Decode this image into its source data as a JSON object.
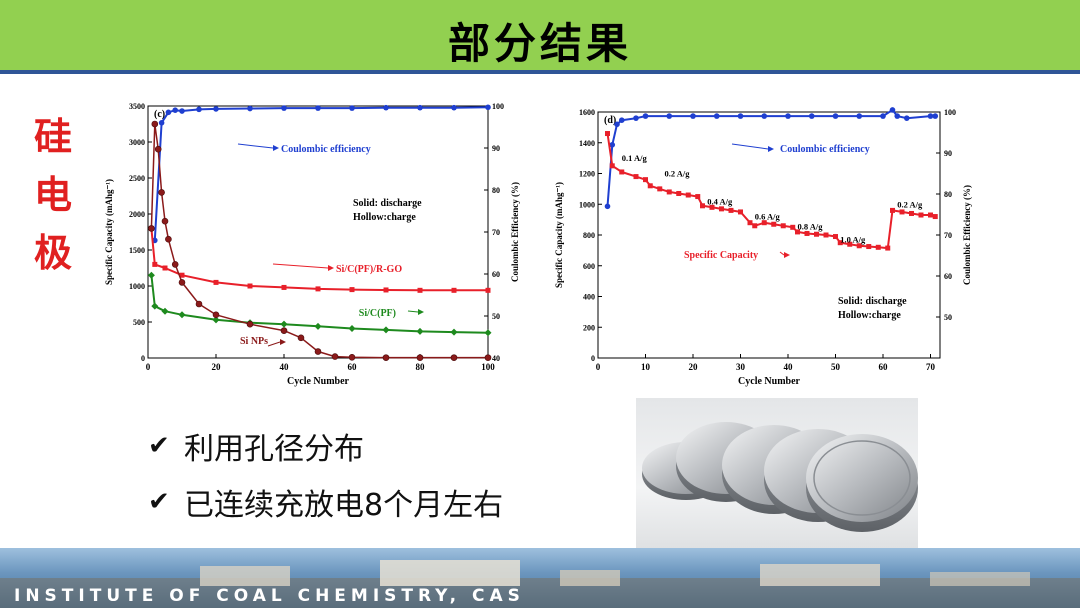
{
  "title": "部分结果",
  "side_label": [
    "硅",
    "电",
    "极"
  ],
  "bullets": [
    "利用孔径分布",
    "已连续充放电8个月左右"
  ],
  "footer_text": "INSTITUTE OF COAL CHEMISTRY, CAS",
  "colors": {
    "title_bg": "#92d050",
    "title_border": "#2f5597",
    "side_label": "#e02020",
    "red": "#e8202a",
    "green": "#1e8a1e",
    "blue": "#1f3fd0",
    "brown": "#8b1a1a"
  },
  "chart_data": [
    {
      "panel": "(c)",
      "type": "scatter",
      "xlabel": "Cycle Number",
      "ylabel": "Specific Capacity (mAhg⁻¹)",
      "y2label": "Coulombic Efficiency (%)",
      "xlim": [
        0,
        100
      ],
      "ylim": [
        0,
        3500
      ],
      "y2lim": [
        40,
        100
      ],
      "xticks": [
        "0",
        "20",
        "40",
        "60",
        "80",
        "100"
      ],
      "yticks": [
        "0",
        "500",
        "1000",
        "1500",
        "2000",
        "2500",
        "3000",
        "3500"
      ],
      "y2ticks": [
        "40",
        "50",
        "60",
        "70",
        "80",
        "90",
        "100"
      ],
      "legend_note": [
        "Solid:  discharge",
        "Hollow:charge"
      ],
      "annotations": [
        "Coulombic efficiency",
        "Si/C(PF)/R-GO",
        "Si/C(PF)",
        "Si NPs"
      ],
      "series": [
        {
          "name": "Coulombic efficiency",
          "axis": "y2",
          "x": [
            2,
            4,
            6,
            8,
            10,
            15,
            20,
            30,
            40,
            50,
            60,
            70,
            80,
            90,
            100
          ],
          "y": [
            68,
            96,
            98.5,
            99,
            98.8,
            99.2,
            99.3,
            99.4,
            99.5,
            99.5,
            99.5,
            99.6,
            99.6,
            99.6,
            99.7
          ]
        },
        {
          "name": "Si/C(PF)/R-GO",
          "axis": "y",
          "x": [
            1,
            2,
            5,
            10,
            20,
            30,
            40,
            50,
            60,
            70,
            80,
            90,
            100
          ],
          "y": [
            1800,
            1300,
            1250,
            1150,
            1050,
            1000,
            980,
            960,
            950,
            945,
            940,
            940,
            940
          ]
        },
        {
          "name": "Si/C(PF)",
          "axis": "y",
          "x": [
            1,
            2,
            5,
            10,
            20,
            30,
            40,
            50,
            60,
            70,
            80,
            90,
            100
          ],
          "y": [
            1150,
            720,
            650,
            600,
            530,
            490,
            470,
            440,
            410,
            390,
            370,
            360,
            350
          ]
        },
        {
          "name": "Si NPs",
          "axis": "y",
          "x": [
            1,
            2,
            3,
            4,
            5,
            6,
            8,
            10,
            15,
            20,
            30,
            40,
            45,
            50,
            55,
            60,
            70,
            80,
            90,
            100
          ],
          "y": [
            1800,
            3250,
            2900,
            2300,
            1900,
            1650,
            1300,
            1050,
            750,
            600,
            470,
            380,
            280,
            90,
            20,
            10,
            5,
            5,
            5,
            5
          ]
        }
      ]
    },
    {
      "panel": "(d)",
      "type": "scatter",
      "xlabel": "Cycle Number",
      "ylabel": "Specific Capacity (mAhg⁻¹)",
      "y2label": "Coulombic Efficiency (%)",
      "xlim": [
        0,
        72
      ],
      "ylim": [
        0,
        1600
      ],
      "y2lim": [
        40,
        100
      ],
      "xticks": [
        "0",
        "10",
        "20",
        "30",
        "40",
        "50",
        "60",
        "70"
      ],
      "yticks": [
        "0",
        "200",
        "400",
        "600",
        "800",
        "1000",
        "1200",
        "1400",
        "1600"
      ],
      "y2ticks": [
        "50",
        "60",
        "70",
        "80",
        "90",
        "100"
      ],
      "legend_note": [
        "Solid:  discharge",
        "Hollow:charge"
      ],
      "annotations": [
        "Coulombic efficiency",
        "Specific Capacity"
      ],
      "rate_labels": [
        {
          "text": "0.1 A/g",
          "x": 5,
          "y": 1280
        },
        {
          "text": "0.2 A/g",
          "x": 14,
          "y": 1180
        },
        {
          "text": "0.4 A/g",
          "x": 23,
          "y": 1000
        },
        {
          "text": "0.6 A/g",
          "x": 33,
          "y": 900
        },
        {
          "text": "0.8 A/g",
          "x": 42,
          "y": 835
        },
        {
          "text": "1.0 A/g",
          "x": 51,
          "y": 750
        },
        {
          "text": "0.2 A/g",
          "x": 63,
          "y": 980
        }
      ],
      "series": [
        {
          "name": "Coulombic efficiency",
          "axis": "y2",
          "x": [
            2,
            3,
            4,
            5,
            8,
            10,
            15,
            20,
            25,
            30,
            35,
            40,
            45,
            50,
            55,
            60,
            62,
            63,
            65,
            70,
            71
          ],
          "y": [
            77,
            92,
            97,
            98,
            98.5,
            99,
            99,
            99,
            99,
            99,
            99,
            99,
            99,
            99,
            99,
            99,
            100.5,
            99,
            98.5,
            99,
            99
          ]
        },
        {
          "name": "Specific Capacity",
          "axis": "y",
          "x": [
            2,
            3,
            5,
            8,
            10,
            11,
            13,
            15,
            17,
            19,
            21,
            22,
            24,
            26,
            28,
            30,
            32,
            33,
            35,
            37,
            39,
            41,
            42,
            44,
            46,
            48,
            50,
            51,
            53,
            55,
            57,
            59,
            61,
            62,
            64,
            66,
            68,
            70,
            71
          ],
          "y": [
            1460,
            1250,
            1210,
            1180,
            1160,
            1120,
            1100,
            1080,
            1070,
            1060,
            1050,
            990,
            980,
            970,
            960,
            950,
            880,
            860,
            880,
            870,
            860,
            850,
            820,
            810,
            805,
            800,
            790,
            750,
            740,
            730,
            725,
            720,
            715,
            960,
            950,
            940,
            930,
            930,
            920
          ]
        }
      ]
    }
  ]
}
